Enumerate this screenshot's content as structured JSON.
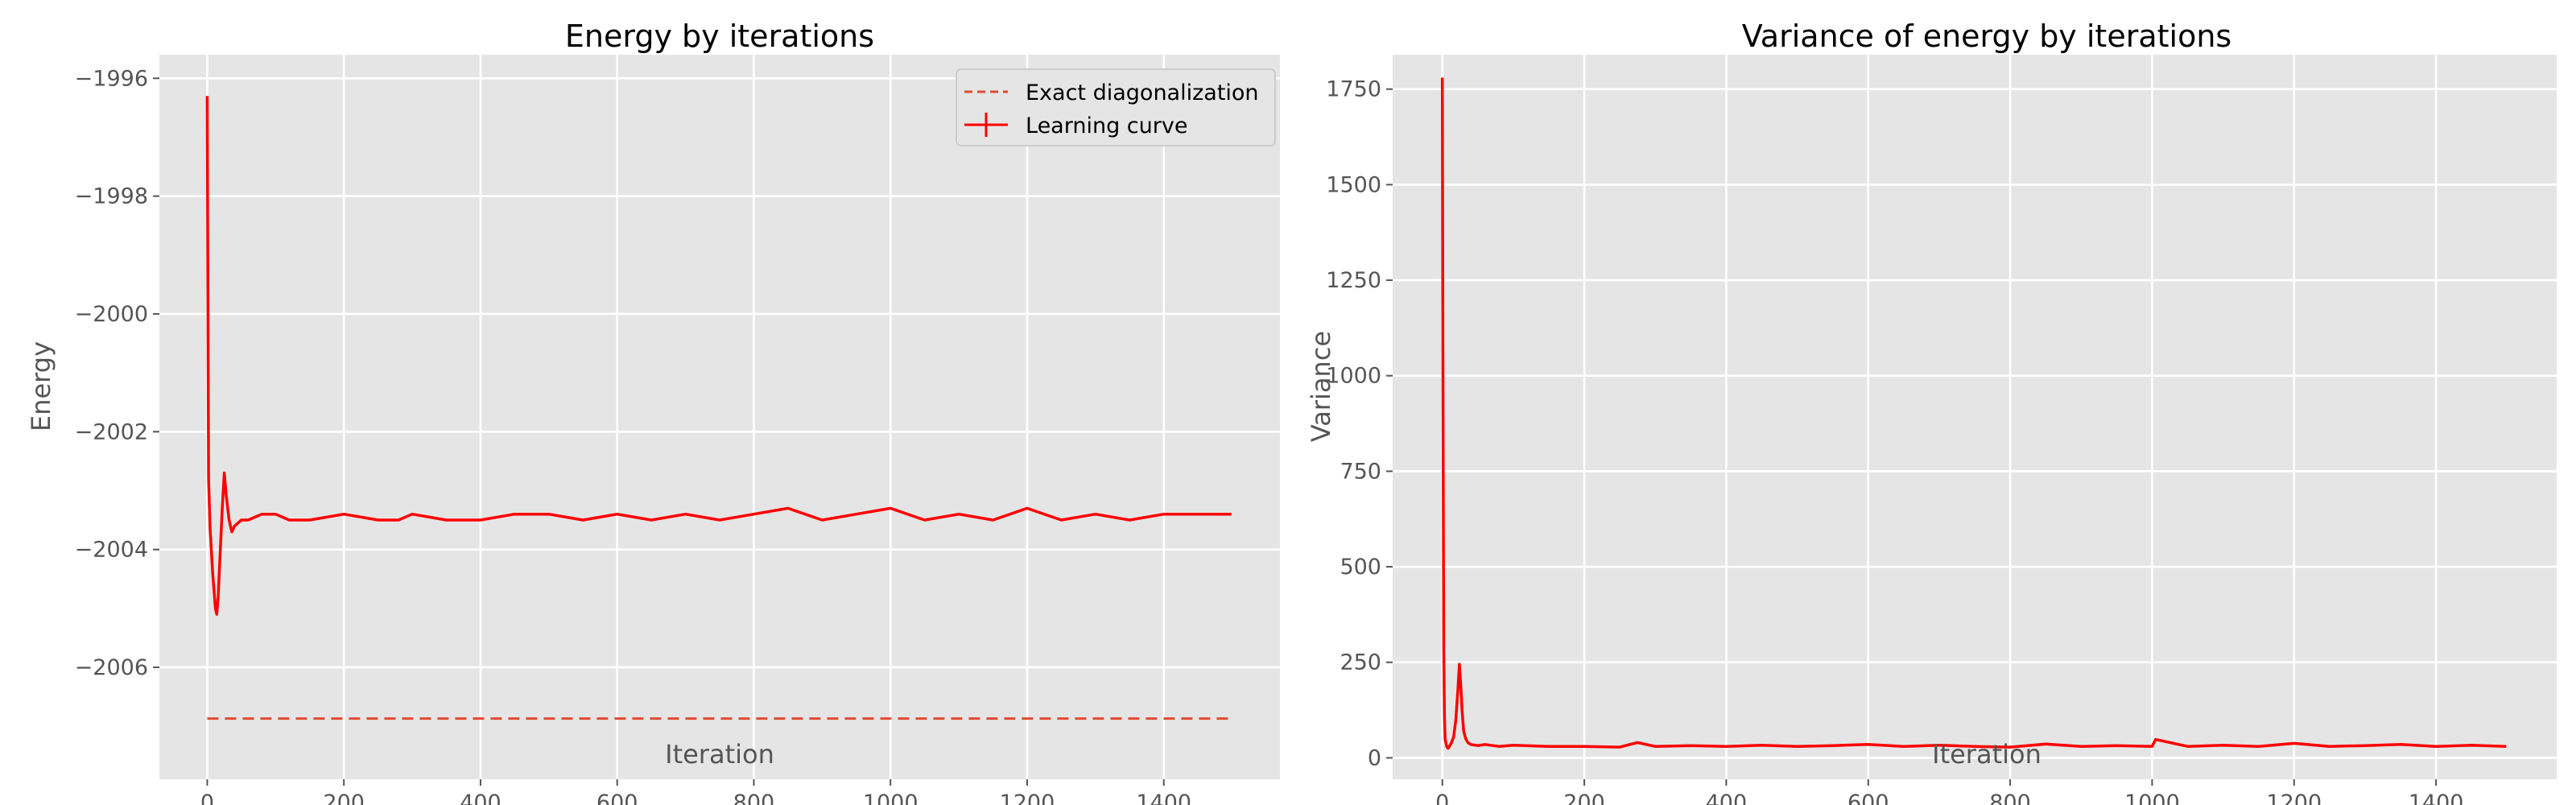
{
  "chart_data": [
    {
      "type": "line",
      "title": "Energy by iterations",
      "xlabel": "Iteration",
      "ylabel": "Energy",
      "xlim": [
        -70,
        1570
      ],
      "ylim": [
        -2007.9,
        -1995.6
      ],
      "xticks": [
        0,
        200,
        400,
        600,
        800,
        1000,
        1200,
        1400
      ],
      "yticks": [
        -2006,
        -2004,
        -2002,
        -2000,
        -1998,
        -1996
      ],
      "xtick_labels": [
        "0",
        "200",
        "400",
        "600",
        "800",
        "1000",
        "1200",
        "1400"
      ],
      "ytick_labels": [
        "−2006",
        "−2004",
        "−2002",
        "−2000",
        "−1998",
        "−1996"
      ],
      "grid": true,
      "legend": {
        "placement": "top-right",
        "entries": [
          "Exact diagonalization",
          "Learning curve"
        ]
      },
      "series": [
        {
          "name": "Exact diagonalization",
          "style": "dashed",
          "color": "#e24a33",
          "x": [
            0,
            1499
          ],
          "y": [
            -2006.87,
            -2006.87
          ]
        },
        {
          "name": "Learning curve",
          "style": "solid",
          "color": "#ff0000",
          "x": [
            0,
            2,
            4,
            6,
            8,
            10,
            12,
            14,
            16,
            18,
            20,
            22,
            25,
            28,
            32,
            36,
            40,
            50,
            60,
            80,
            100,
            120,
            150,
            200,
            250,
            280,
            300,
            350,
            400,
            450,
            500,
            550,
            600,
            650,
            700,
            750,
            800,
            850,
            900,
            950,
            1000,
            1050,
            1100,
            1150,
            1200,
            1250,
            1300,
            1350,
            1400,
            1450,
            1499
          ],
          "y": [
            -1996.3,
            -2002.8,
            -2003.6,
            -2004.0,
            -2004.4,
            -2004.7,
            -2005.0,
            -2005.1,
            -2004.8,
            -2004.3,
            -2003.8,
            -2003.3,
            -2002.7,
            -2003.1,
            -2003.5,
            -2003.7,
            -2003.6,
            -2003.5,
            -2003.5,
            -2003.4,
            -2003.4,
            -2003.5,
            -2003.5,
            -2003.4,
            -2003.5,
            -2003.5,
            -2003.4,
            -2003.5,
            -2003.5,
            -2003.4,
            -2003.4,
            -2003.5,
            -2003.4,
            -2003.5,
            -2003.4,
            -2003.5,
            -2003.4,
            -2003.3,
            -2003.5,
            -2003.4,
            -2003.3,
            -2003.5,
            -2003.4,
            -2003.5,
            -2003.3,
            -2003.5,
            -2003.4,
            -2003.5,
            -2003.4,
            -2003.4,
            -2003.4
          ]
        }
      ]
    },
    {
      "type": "line",
      "title": "Variance of energy by iterations",
      "xlabel": "Iteration",
      "ylabel": "Variance",
      "xlim": [
        -70,
        1570
      ],
      "ylim": [
        -56,
        1840
      ],
      "xticks": [
        0,
        200,
        400,
        600,
        800,
        1000,
        1200,
        1400
      ],
      "yticks": [
        0,
        250,
        500,
        750,
        1000,
        1250,
        1500,
        1750
      ],
      "xtick_labels": [
        "0",
        "200",
        "400",
        "600",
        "800",
        "1000",
        "1200",
        "1400"
      ],
      "ytick_labels": [
        "0",
        "250",
        "500",
        "750",
        "1000",
        "1250",
        "1500",
        "1750"
      ],
      "grid": true,
      "series": [
        {
          "style": "solid",
          "color": "#ff0000",
          "x": [
            0,
            1,
            2,
            3,
            4,
            6,
            8,
            10,
            13,
            16,
            19,
            22,
            24,
            26,
            28,
            30,
            33,
            36,
            40,
            50,
            60,
            80,
            100,
            150,
            200,
            250,
            275,
            300,
            350,
            400,
            450,
            500,
            550,
            600,
            650,
            700,
            750,
            800,
            850,
            900,
            950,
            1000,
            1005,
            1050,
            1100,
            1150,
            1200,
            1250,
            1300,
            1350,
            1400,
            1450,
            1499
          ],
          "y": [
            1780,
            900,
            280,
            100,
            50,
            30,
            25,
            30,
            40,
            55,
            100,
            180,
            245,
            190,
            120,
            70,
            50,
            40,
            35,
            32,
            35,
            30,
            33,
            30,
            30,
            28,
            40,
            30,
            32,
            30,
            33,
            30,
            32,
            35,
            30,
            33,
            30,
            28,
            36,
            30,
            32,
            30,
            48,
            30,
            33,
            30,
            38,
            30,
            32,
            35,
            30,
            33,
            30
          ]
        }
      ]
    }
  ]
}
